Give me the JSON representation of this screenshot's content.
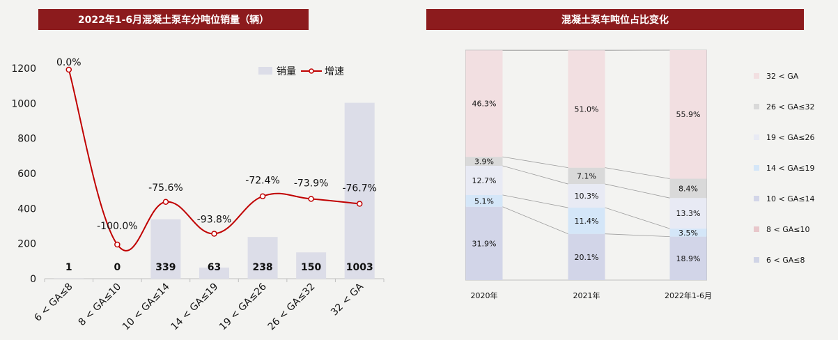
{
  "left_chart_title": "2022年1-6月混凝土泵车分吨位销量（辆）",
  "right_chart_title": "混凝土泵车吨位占比变化",
  "chart_data": [
    {
      "type": "bar",
      "title": "2022年1-6月混凝土泵车分吨位销量（辆）",
      "categories": [
        "6 < GA≤8",
        "8 < GA≤10",
        "10 < GA≤14",
        "14 < GA≤19",
        "19 < GA≤26",
        "26 < GA≤32",
        "32 < GA"
      ],
      "ylim": [
        0,
        1200
      ],
      "yticks": [
        0,
        200,
        400,
        600,
        800,
        1000,
        1200
      ],
      "grid": false,
      "legend_position": "top-right",
      "series": [
        {
          "name": "销量",
          "type": "bar",
          "color": "#dcdde8",
          "values": [
            1,
            0,
            339,
            63,
            238,
            150,
            1003
          ],
          "labels": [
            "1",
            "0",
            "339",
            "63",
            "238",
            "150",
            "1003"
          ]
        },
        {
          "name": "增速",
          "type": "line",
          "color": "#c00000",
          "values": [
            0.0,
            -100.0,
            -75.6,
            -93.8,
            -72.4,
            -73.9,
            -76.7
          ],
          "labels": [
            "0.0%",
            "-100.0%",
            "-75.6%",
            "-93.8%",
            "-72.4%",
            "-73.9%",
            "-76.7%"
          ]
        }
      ]
    },
    {
      "type": "bar",
      "stacked": true,
      "percent": true,
      "title": "混凝土泵车吨位占比变化",
      "categories": [
        "2020年",
        "2021年",
        "2022年1-6月"
      ],
      "legend_position": "right",
      "series": [
        {
          "name": "6 < GA≤8",
          "color": "#d0d4e6",
          "values": [
            0.0,
            0.0,
            0.0
          ],
          "labels": [
            "",
            "",
            ""
          ]
        },
        {
          "name": "8 < GA≤10",
          "color": "#e8c7cb",
          "values": [
            0.0,
            0.0,
            0.0
          ],
          "labels": [
            "",
            "",
            ""
          ]
        },
        {
          "name": "10 < GA≤14",
          "color": "#d2d5e8",
          "values": [
            31.9,
            20.1,
            18.9
          ],
          "labels": [
            "31.9%",
            "20.1%",
            "18.9%"
          ]
        },
        {
          "name": "14 < GA≤19",
          "color": "#d4e6f8",
          "values": [
            5.1,
            11.4,
            3.5
          ],
          "labels": [
            "5.1%",
            "11.4%",
            "3.5%"
          ]
        },
        {
          "name": "19 < GA≤26",
          "color": "#e8eaf4",
          "values": [
            12.7,
            10.3,
            13.3
          ],
          "labels": [
            "12.7%",
            "10.3%",
            "13.3%"
          ]
        },
        {
          "name": "26 < GA≤32",
          "color": "#d9d9d9",
          "values": [
            3.9,
            7.1,
            8.4
          ],
          "labels": [
            "3.9%",
            "7.1%",
            "8.4%"
          ]
        },
        {
          "name": "32 < GA",
          "color": "#f2dfe1",
          "values": [
            46.3,
            51.0,
            55.9
          ],
          "labels": [
            "46.3%",
            "51.0%",
            "55.9%"
          ]
        }
      ],
      "legend_order": [
        "32 < GA",
        "26 < GA≤32",
        "19 < GA≤26",
        "14 < GA≤19",
        "10 < GA≤14",
        "8 < GA≤10",
        "6 < GA≤8"
      ]
    }
  ]
}
